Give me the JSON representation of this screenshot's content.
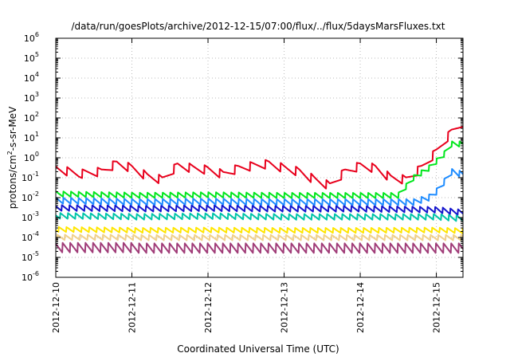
{
  "chart_data": {
    "type": "line",
    "title": "/data/run/goesPlots/archive/2012-12-15/07:00/flux/../flux/5daysMarsFluxes.txt",
    "xlabel": "Coordinated Universal Time (UTC)",
    "ylabel": {
      "prefix": "protons/cm",
      "sup": "2",
      "suffix": "-s-sr-MeV"
    },
    "y_scale": "log",
    "ylim": [
      1e-06,
      1000000.0
    ],
    "xlim": [
      0,
      5.35
    ],
    "grid": true,
    "y_ticks": [
      {
        "exp": -6,
        "label": "10",
        "sup": "-6"
      },
      {
        "exp": -5,
        "label": "10",
        "sup": "-5"
      },
      {
        "exp": -4,
        "label": "10",
        "sup": "-4"
      },
      {
        "exp": -3,
        "label": "10",
        "sup": "-3"
      },
      {
        "exp": -2,
        "label": "10",
        "sup": "-2"
      },
      {
        "exp": -1,
        "label": "10",
        "sup": "-1"
      },
      {
        "exp": 0,
        "label": "10",
        "sup": "0"
      },
      {
        "exp": 1,
        "label": "10",
        "sup": "1"
      },
      {
        "exp": 2,
        "label": "10",
        "sup": "2"
      },
      {
        "exp": 3,
        "label": "10",
        "sup": "3"
      },
      {
        "exp": 4,
        "label": "10",
        "sup": "4"
      },
      {
        "exp": 5,
        "label": "10",
        "sup": "5"
      },
      {
        "exp": 6,
        "label": "10",
        "sup": "6"
      }
    ],
    "x_ticks": [
      {
        "x": 0,
        "label": "2012-12-10"
      },
      {
        "x": 1,
        "label": "2012-12-11"
      },
      {
        "x": 2,
        "label": "2012-12-12"
      },
      {
        "x": 3,
        "label": "2012-12-13"
      },
      {
        "x": 4,
        "label": "2012-12-14"
      },
      {
        "x": 5,
        "label": "2012-12-15"
      }
    ],
    "series": [
      {
        "color": "#e8001c",
        "x": [
          0,
          0.3,
          0.6,
          0.8,
          1.0,
          1.2,
          1.4,
          1.6,
          1.8,
          2.0,
          2.2,
          2.4,
          2.6,
          2.8,
          3.0,
          3.2,
          3.4,
          3.6,
          3.8,
          4.0,
          4.2,
          4.4,
          4.6,
          4.8,
          5.0,
          5.2,
          5.35
        ],
        "values": [
          0.28,
          0.15,
          0.2,
          0.5,
          0.3,
          0.12,
          0.08,
          0.4,
          0.3,
          0.25,
          0.15,
          0.3,
          0.4,
          0.5,
          0.3,
          0.2,
          0.08,
          0.04,
          0.2,
          0.4,
          0.3,
          0.1,
          0.08,
          0.3,
          2.0,
          20.0,
          60.0
        ]
      },
      {
        "color": "#00e61c",
        "x": [
          0,
          1.0,
          2.0,
          3.0,
          4.0,
          4.5,
          4.7,
          4.9,
          5.1,
          5.2,
          5.35
        ],
        "values": [
          0.015,
          0.013,
          0.014,
          0.013,
          0.013,
          0.013,
          0.1,
          0.3,
          1.5,
          5.0,
          5.0
        ]
      },
      {
        "color": "#1e8cff",
        "x": [
          0,
          1.0,
          2.0,
          3.0,
          4.0,
          4.7,
          4.9,
          5.0,
          5.1,
          5.2,
          5.35
        ],
        "values": [
          0.007,
          0.006,
          0.0065,
          0.006,
          0.006,
          0.006,
          0.01,
          0.02,
          0.06,
          0.2,
          0.15
        ]
      },
      {
        "color": "#1414cc",
        "x": [
          0,
          1.0,
          2.0,
          3.0,
          4.0,
          5.0,
          5.35
        ],
        "values": [
          0.003,
          0.0028,
          0.003,
          0.0028,
          0.0028,
          0.0025,
          0.0018
        ]
      },
      {
        "color": "#00c4a8",
        "x": [
          0,
          1.0,
          2.0,
          3.0,
          4.0,
          5.0,
          5.35
        ],
        "values": [
          0.0012,
          0.0011,
          0.0012,
          0.0011,
          0.0011,
          0.0011,
          0.0009
        ]
      },
      {
        "color": "#ffe600",
        "x": [
          0,
          1.0,
          2.0,
          3.0,
          4.0,
          5.0,
          5.35
        ],
        "values": [
          0.00025,
          0.00023,
          0.00024,
          0.00023,
          0.00023,
          0.00024,
          0.00022
        ]
      },
      {
        "color": "#f0d08c",
        "x": [
          0,
          1.0,
          2.0,
          3.0,
          4.0,
          5.0,
          5.35
        ],
        "values": [
          0.0001,
          0.0001,
          0.0001,
          0.0001,
          0.0001,
          0.0001,
          0.0001
        ]
      },
      {
        "color": "#a03c78",
        "x": [
          0,
          1.0,
          2.0,
          3.0,
          4.0,
          5.0,
          5.35
        ],
        "values": [
          3e-05,
          3e-05,
          3e-05,
          3e-05,
          3e-05,
          3e-05,
          3e-05
        ]
      }
    ]
  }
}
